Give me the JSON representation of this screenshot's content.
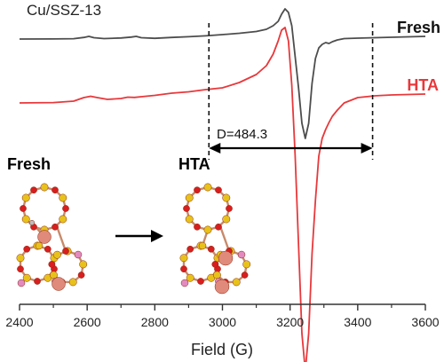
{
  "chart_data": {
    "type": "line",
    "title": "Cu/SSZ-13",
    "xlabel": "Field (G)",
    "ylabel": "",
    "xlim": [
      2400,
      3600
    ],
    "x_ticks": [
      2400,
      2600,
      2800,
      3000,
      3200,
      3400,
      3600
    ],
    "x_tick_labels": [
      "2400",
      "2600",
      "2800",
      "3000",
      "3200",
      "3400",
      "3600"
    ],
    "y_ticks_visible": false,
    "grid": false,
    "legend": "inline labels at right end of each trace",
    "series": [
      {
        "name": "Fresh",
        "color": "#4d4d4d",
        "x": [
          2400,
          2500,
          2560,
          2590,
          2605,
          2620,
          2650,
          2700,
          2730,
          2745,
          2760,
          2800,
          2850,
          2900,
          2950,
          3000,
          3050,
          3100,
          3130,
          3150,
          3165,
          3175,
          3185,
          3195,
          3205,
          3215,
          3225,
          3235,
          3245,
          3255,
          3265,
          3275,
          3285,
          3295,
          3305,
          3315,
          3325,
          3340,
          3360,
          3400,
          3450,
          3500,
          3550,
          3600
        ],
        "y": [
          0,
          0.1,
          0.4,
          1.8,
          3.0,
          1.5,
          0.5,
          1.2,
          2.2,
          3.0,
          1.5,
          0.8,
          1.8,
          2.6,
          3.6,
          5.0,
          6.5,
          8.5,
          11.0,
          15.0,
          20.0,
          28.0,
          34.0,
          30.0,
          15.0,
          -20.0,
          -55.0,
          -95.0,
          -112.0,
          -95.0,
          -50.0,
          -22.0,
          -10.0,
          -6.0,
          -4.0,
          -5.0,
          -3.0,
          -1.0,
          0.5,
          1.0,
          1.5,
          2.0,
          2.5,
          3.0
        ]
      },
      {
        "name": "HTA",
        "color": "#e8383b",
        "x": [
          2400,
          2500,
          2560,
          2590,
          2610,
          2630,
          2660,
          2700,
          2720,
          2740,
          2760,
          2800,
          2850,
          2900,
          2950,
          3000,
          3050,
          3100,
          3130,
          3150,
          3165,
          3175,
          3185,
          3195,
          3205,
          3215,
          3225,
          3235,
          3245,
          3255,
          3265,
          3275,
          3285,
          3295,
          3305,
          3315,
          3325,
          3340,
          3360,
          3400,
          3450,
          3500,
          3550,
          3600
        ],
        "y": [
          0,
          0.4,
          2.0,
          6.0,
          7.5,
          6.0,
          4.0,
          5.0,
          6.5,
          6.2,
          7.0,
          8.5,
          11.0,
          12.5,
          15.0,
          17.0,
          23.0,
          32.0,
          42.0,
          55.0,
          70.0,
          82.0,
          85.0,
          70.0,
          20.0,
          -60.0,
          -160.0,
          -260.0,
          -302.0,
          -260.0,
          -170.0,
          -110.0,
          -60.0,
          -40.0,
          -30.0,
          -22.0,
          -15.0,
          -8.0,
          0.0,
          6.0,
          8.0,
          9.0,
          9.5,
          10.0
        ]
      }
    ],
    "annotations": [
      {
        "text": "D=484.3",
        "type": "double-arrow",
        "x_start": 2960,
        "x_end": 3444
      }
    ],
    "reference_lines": [
      {
        "orientation": "vertical",
        "style": "dashed",
        "x": 2960
      },
      {
        "orientation": "vertical",
        "style": "dashed",
        "x": 3444
      }
    ],
    "inset_labels": [
      {
        "text": "Fresh",
        "color": "#111111"
      },
      {
        "text": "HTA",
        "color": "#e8383b"
      }
    ],
    "inset_transition": "arrow from Fresh structure to HTA structure"
  }
}
